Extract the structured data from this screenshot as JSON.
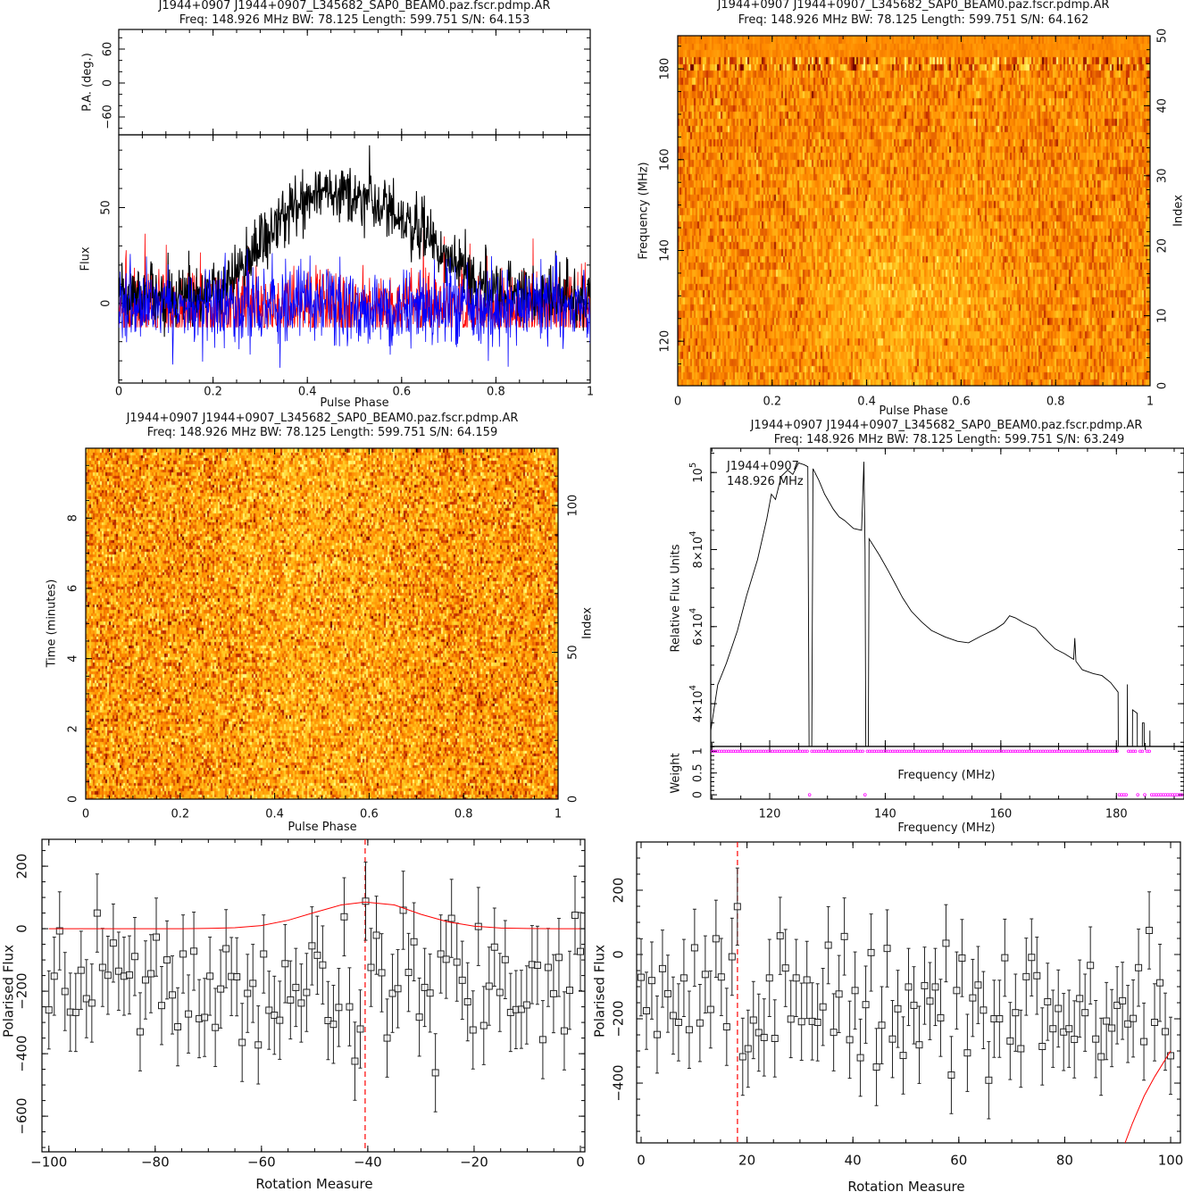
{
  "panels": {
    "profile": {
      "title": "J1944+0907 J1944+0907_L345682_SAP0_BEAM0.paz.fscr.pdmp.AR",
      "subtitle": "Freq: 148.926 MHz BW: 78.125 Length: 599.751 S/N: 64.153",
      "pa_ylabel": "P.A. (deg.)",
      "flux_ylabel": "Flux",
      "xlabel": "Pulse Phase"
    },
    "freq_phase": {
      "title": "J1944+0907 J1944+0907_L345682_SAP0_BEAM0.paz.fscr.pdmp.AR",
      "subtitle": "Freq: 148.926 MHz BW: 78.125 Length: 599.751 S/N: 64.162",
      "ylabel": "Frequency (MHz)",
      "y2label": "Index",
      "xlabel": "Pulse Phase"
    },
    "time_phase": {
      "title": "J1944+0907 J1944+0907_L345682_SAP0_BEAM0.paz.fscr.pdmp.AR",
      "subtitle": "Freq: 148.926 MHz BW: 78.125 Length: 599.751 S/N: 64.159",
      "ylabel": "Time (minutes)",
      "y2label": "Index",
      "xlabel": "Pulse Phase"
    },
    "spectrum": {
      "title": "J1944+0907 J1944+0907_L345682_SAP0_BEAM0.paz.fscr.pdmp.AR",
      "subtitle": "Freq: 148.926 MHz BW: 78.125 Length: 599.751 S/N: 63.249",
      "legend_source": "J1944+0907",
      "legend_freq": "148.926 MHz",
      "ylabel": "Relative Flux Units",
      "weight_ylabel": "Weight",
      "weight_inner_xlabel": "Frequency (MHz)",
      "xlabel": "Frequency (MHz)"
    },
    "rm_left": {
      "ylabel": "Polarised Flux",
      "xlabel": "Rotation Measure"
    },
    "rm_right": {
      "ylabel": "Polarised Flux",
      "xlabel": "Rotation Measure"
    }
  },
  "colors": {
    "total_intensity": "#000000",
    "linear": "#ff0000",
    "circular": "#0000ff",
    "weights": "#ff00ff",
    "fit": "#ff0000",
    "heat": [
      "#6e0000",
      "#c83200",
      "#ff8c00",
      "#ffc820",
      "#ffff80"
    ]
  },
  "chart_data": [
    {
      "id": "pa",
      "type": "scatter",
      "xlim": [
        0,
        1
      ],
      "ylim": [
        -91.6,
        94.7
      ],
      "xticks": [
        0,
        0.2,
        0.4,
        0.6,
        0.8,
        1
      ],
      "xminor": 0.05,
      "yticks": [
        {
          "v": 60,
          "label": "60"
        },
        {
          "v": 0,
          "label": "0"
        },
        {
          "v": -60,
          "label": "−60"
        }
      ],
      "yminor": 20,
      "points": []
    },
    {
      "id": "profile",
      "type": "line",
      "xlim": [
        0,
        1
      ],
      "ylim": [
        -41.6,
        88
      ],
      "xticks": [
        {
          "v": 0,
          "label": "0"
        },
        {
          "v": 0.2,
          "label": "0.2"
        },
        {
          "v": 0.4,
          "label": "0.4"
        },
        {
          "v": 0.6,
          "label": "0.6"
        },
        {
          "v": 0.8,
          "label": "0.8"
        },
        {
          "v": 1,
          "label": "1"
        }
      ],
      "xminor": 0.05,
      "yticks": [
        {
          "v": 50,
          "label": "50"
        },
        {
          "v": 0,
          "label": "0"
        }
      ],
      "yminor": 10,
      "total_intensity_envelope": {
        "phase": [
          0,
          0.1,
          0.2,
          0.25,
          0.3,
          0.35,
          0.4,
          0.45,
          0.5,
          0.55,
          0.6,
          0.65,
          0.7,
          0.75,
          0.8,
          0.9,
          1
        ],
        "flux": [
          3,
          3,
          5,
          15,
          30,
          45,
          55,
          60,
          56,
          52,
          45,
          36,
          25,
          12,
          6,
          4,
          3
        ]
      },
      "linear_floor": -12.5,
      "series": [
        {
          "key": "total_intensity"
        },
        {
          "key": "linear"
        },
        {
          "key": "circular"
        }
      ]
    },
    {
      "id": "freq_phase",
      "type": "heatmap",
      "xlim": [
        0,
        1
      ],
      "ylim": [
        110.2,
        187.3
      ],
      "y2lim": [
        0,
        50
      ],
      "xticks": [
        {
          "v": 0,
          "label": "0"
        },
        {
          "v": 0.2,
          "label": "0.2"
        },
        {
          "v": 0.4,
          "label": "0.4"
        },
        {
          "v": 0.6,
          "label": "0.6"
        },
        {
          "v": 0.8,
          "label": "0.8"
        },
        {
          "v": 1,
          "label": "1"
        }
      ],
      "xminor": 0.05,
      "yticks": [
        {
          "v": 120,
          "label": "120"
        },
        {
          "v": 140,
          "label": "140"
        },
        {
          "v": 160,
          "label": "160"
        },
        {
          "v": 180,
          "label": "180"
        }
      ],
      "yminor": 5,
      "y2ticks": [
        {
          "v": 0,
          "label": "0"
        },
        {
          "v": 10,
          "label": "10"
        },
        {
          "v": 20,
          "label": "20"
        },
        {
          "v": 30,
          "label": "30"
        },
        {
          "v": 40,
          "label": "40"
        },
        {
          "v": 50,
          "label": "50"
        }
      ],
      "y2minor": 2,
      "rows": 51
    },
    {
      "id": "time_phase",
      "type": "heatmap",
      "xlim": [
        0,
        1
      ],
      "ylim": [
        0,
        9.99
      ],
      "y2lim": [
        0,
        119.5
      ],
      "xticks": [
        {
          "v": 0,
          "label": "0"
        },
        {
          "v": 0.2,
          "label": "0.2"
        },
        {
          "v": 0.4,
          "label": "0.4"
        },
        {
          "v": 0.6,
          "label": "0.6"
        },
        {
          "v": 0.8,
          "label": "0.8"
        },
        {
          "v": 1,
          "label": "1"
        }
      ],
      "xminor": 0.05,
      "yticks": [
        {
          "v": 0,
          "label": "0"
        },
        {
          "v": 2,
          "label": "2"
        },
        {
          "v": 4,
          "label": "4"
        },
        {
          "v": 6,
          "label": "6"
        },
        {
          "v": 8,
          "label": "8"
        }
      ],
      "yminor": 0.5,
      "y2ticks": [
        {
          "v": 0,
          "label": "0"
        },
        {
          "v": 50,
          "label": "50"
        },
        {
          "v": 100,
          "label": "100"
        }
      ],
      "y2minor": 10,
      "rows": 120
    },
    {
      "id": "spectrum",
      "type": "line",
      "xlim": [
        109.8,
        191.7
      ],
      "ylim": [
        28900,
        106300
      ],
      "xticks": [
        {
          "v": 120,
          "label": "120"
        },
        {
          "v": 140,
          "label": "140"
        },
        {
          "v": 160,
          "label": "160"
        },
        {
          "v": 180,
          "label": "180"
        }
      ],
      "xminor": 5,
      "yticks": [
        {
          "v": 100000,
          "base": "10",
          "exp": "5"
        },
        {
          "v": 80000,
          "base": "8×10",
          "exp": "4"
        },
        {
          "v": 60000,
          "base": "6×10",
          "exp": "4"
        },
        {
          "v": 40000,
          "base": "4×10",
          "exp": "4"
        }
      ],
      "yminor": 5000,
      "points": [
        [
          109.8,
          33000
        ],
        [
          111.0,
          44900
        ],
        [
          112.5,
          50500
        ],
        [
          114.4,
          58900
        ],
        [
          116,
          68000
        ],
        [
          117.9,
          77400
        ],
        [
          119.5,
          88000
        ],
        [
          120.3,
          94400
        ],
        [
          121,
          93000
        ],
        [
          122,
          99000
        ],
        [
          123.1,
          100600
        ],
        [
          124,
          99500
        ],
        [
          125,
          102500
        ],
        [
          126.0,
          102000
        ],
        [
          126.6,
          101500
        ],
        [
          126.9,
          0
        ],
        [
          127.2,
          0
        ],
        [
          127.5,
          101000
        ],
        [
          128.5,
          98000
        ],
        [
          129.5,
          94400
        ],
        [
          131,
          90500
        ],
        [
          132,
          88500
        ],
        [
          133.0,
          87500
        ],
        [
          134.5,
          85500
        ],
        [
          135.9,
          85000
        ],
        [
          136.3,
          102800
        ],
        [
          136.5,
          80000
        ],
        [
          136.7,
          0
        ],
        [
          137.0,
          0
        ],
        [
          137.2,
          82800
        ],
        [
          139,
          78500
        ],
        [
          140.5,
          74500
        ],
        [
          141.7,
          71200
        ],
        [
          143,
          67500
        ],
        [
          144.5,
          64000
        ],
        [
          146.3,
          61200
        ],
        [
          148,
          59000
        ],
        [
          150.4,
          57300
        ],
        [
          152.5,
          56200
        ],
        [
          154.4,
          55800
        ],
        [
          156.5,
          57500
        ],
        [
          159.0,
          59300
        ],
        [
          160.5,
          60800
        ],
        [
          161.5,
          62800
        ],
        [
          162.5,
          62300
        ],
        [
          164,
          61000
        ],
        [
          166.0,
          59600
        ],
        [
          167.5,
          57000
        ],
        [
          169.4,
          54200
        ],
        [
          171,
          53000
        ],
        [
          172.6,
          51500
        ],
        [
          172.8,
          57000
        ],
        [
          173,
          51000
        ],
        [
          174.1,
          48800
        ],
        [
          176,
          47800
        ],
        [
          177.5,
          47300
        ],
        [
          179,
          45500
        ],
        [
          180.3,
          43000
        ],
        [
          180.4,
          0
        ],
        [
          181.8,
          0
        ],
        [
          181.9,
          45000
        ],
        [
          182.0,
          0
        ],
        [
          182.7,
          0
        ],
        [
          182.8,
          38400
        ],
        [
          183.6,
          37500
        ],
        [
          183.7,
          0
        ],
        [
          184.4,
          0
        ],
        [
          184.5,
          35000
        ],
        [
          184.8,
          35000
        ],
        [
          184.9,
          0
        ],
        [
          185.7,
          0
        ],
        [
          185.8,
          33000
        ],
        [
          185.9,
          0
        ]
      ]
    },
    {
      "id": "weights",
      "type": "scatter",
      "xlim": [
        109.8,
        191.7
      ],
      "ylim": [
        -0.1,
        1.11
      ],
      "xticks": [
        120,
        140,
        160,
        180
      ],
      "xminor": 5,
      "yticks": [
        {
          "v": 1,
          "label": "1"
        },
        {
          "v": 0.5,
          "label": "0.5"
        },
        {
          "v": 0,
          "label": "0"
        }
      ],
      "yminor": 0.1,
      "default_weight": 1,
      "zero_weight_channels_mhz": [
        [
          126.9,
          126.9
        ],
        [
          136.7,
          136.7
        ],
        [
          180.5,
          181.6
        ],
        [
          183.9,
          183.9
        ],
        [
          184.9,
          184.9
        ],
        [
          186.2,
          192
        ]
      ]
    },
    {
      "id": "rm_left",
      "type": "scatter",
      "xlim": [
        -101.3,
        0.84
      ],
      "ylim": [
        -714,
        286
      ],
      "xticks": [
        {
          "v": -100,
          "label": "−100"
        },
        {
          "v": -80,
          "label": "−80"
        },
        {
          "v": -60,
          "label": "−60"
        },
        {
          "v": -40,
          "label": "−40"
        },
        {
          "v": -20,
          "label": "−20"
        },
        {
          "v": 0,
          "label": "0"
        }
      ],
      "xminor": 5,
      "yticks": [
        {
          "v": 200,
          "label": "200"
        },
        {
          "v": 0,
          "label": "0"
        },
        {
          "v": -200,
          "label": "−200"
        },
        {
          "v": -400,
          "label": "−400"
        },
        {
          "v": -600,
          "label": "−600"
        }
      ],
      "yminor": 50,
      "x_range": [
        -100,
        0
      ],
      "y": [
        -260,
        -152,
        -7,
        -201,
        -267,
        -268,
        -133,
        -224,
        -238,
        50,
        -124,
        -149,
        -46,
        -136,
        -152,
        -148,
        -89,
        -330,
        -164,
        -144,
        -27,
        -246,
        -100,
        -212,
        -314,
        -81,
        -273,
        -72,
        -288,
        -284,
        -152,
        -316,
        -193,
        -64,
        -153,
        -154,
        -364,
        -207,
        -175,
        -372,
        -81,
        -261,
        -277,
        -293,
        -112,
        -228,
        -188,
        -238,
        -204,
        -55,
        -85,
        -116,
        -294,
        -306,
        -252,
        38,
        -250,
        -424,
        -321,
        88,
        -124,
        -21,
        -141,
        -350,
        -207,
        -192,
        59,
        -140,
        -42,
        -283,
        -188,
        -206,
        -461,
        -81,
        -98,
        33,
        -107,
        -165,
        -234,
        -324,
        7,
        -310,
        -184,
        -59,
        -204,
        -99,
        -268,
        -259,
        -258,
        -244,
        -115,
        -117,
        -355,
        -124,
        -208,
        -92,
        -327,
        -197,
        43,
        -73
      ],
      "yerr": 125,
      "peak_rm": -40.5,
      "fit_curve": [
        [
          -100,
          0
        ],
        [
          -75,
          0
        ],
        [
          -70,
          1
        ],
        [
          -65,
          3
        ],
        [
          -60,
          10
        ],
        [
          -55,
          27
        ],
        [
          -50,
          52
        ],
        [
          -45,
          76
        ],
        [
          -40.5,
          85
        ],
        [
          -35,
          76
        ],
        [
          -30,
          46
        ],
        [
          -25,
          22
        ],
        [
          -20,
          8
        ],
        [
          -15,
          2
        ],
        [
          -10,
          0.5
        ],
        [
          -5,
          0
        ],
        [
          0,
          0
        ]
      ]
    },
    {
      "id": "rm_right",
      "type": "scatter",
      "xlim": [
        -0.84,
        101.85
      ],
      "ylim": [
        -586,
        350
      ],
      "xticks": [
        {
          "v": 0,
          "label": "0"
        },
        {
          "v": 20,
          "label": "20"
        },
        {
          "v": 40,
          "label": "40"
        },
        {
          "v": 60,
          "label": "60"
        },
        {
          "v": 80,
          "label": "80"
        },
        {
          "v": 100,
          "label": "100"
        }
      ],
      "xminor": 5,
      "yticks": [
        {
          "v": 200,
          "label": "200"
        },
        {
          "v": 0,
          "label": "0"
        },
        {
          "v": -200,
          "label": "−200"
        },
        {
          "v": -400,
          "label": "−400"
        }
      ],
      "yminor": 50,
      "x_range": [
        0,
        100
      ],
      "y": [
        -71,
        -175,
        -81,
        -249,
        -44,
        -122,
        -190,
        -211,
        -73,
        -234,
        21,
        -213,
        -62,
        -171,
        49,
        -70,
        -225,
        -7,
        149,
        -318,
        -293,
        -204,
        -243,
        -258,
        -73,
        -261,
        58,
        -42,
        -201,
        -73,
        -209,
        -79,
        -208,
        -211,
        -163,
        29,
        -242,
        -123,
        56,
        -265,
        -112,
        -321,
        -156,
        6,
        -350,
        -220,
        19,
        -263,
        -169,
        -314,
        -101,
        -158,
        -281,
        -97,
        -145,
        -101,
        -197,
        35,
        -375,
        -112,
        -11,
        -306,
        -135,
        -95,
        -173,
        -391,
        -200,
        -200,
        -10,
        -269,
        -181,
        -293,
        -69,
        -9,
        -66,
        -286,
        -147,
        -231,
        -168,
        -241,
        -231,
        -264,
        -137,
        -181,
        -34,
        -263,
        -318,
        -207,
        -229,
        -158,
        -144,
        -216,
        -199,
        -41,
        -271,
        75,
        -211,
        -88,
        -240,
        -315
      ],
      "yerr": 120,
      "peak_rm": 18.2,
      "fit_curve": [
        [
          91.4,
          -586
        ],
        [
          92.8,
          -525
        ],
        [
          95,
          -440
        ],
        [
          97,
          -380
        ],
        [
          100,
          -300
        ]
      ]
    }
  ]
}
